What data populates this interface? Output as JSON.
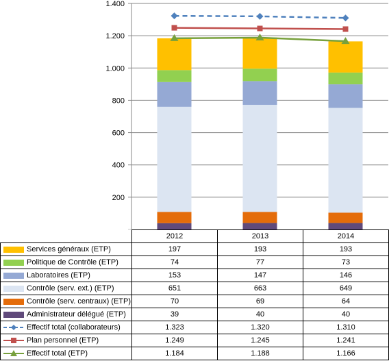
{
  "chart_data": {
    "type": "bar",
    "categories": [
      "2012",
      "2013",
      "2014"
    ],
    "ylim": [
      0,
      1400
    ],
    "yticks": [
      "-",
      "200",
      "400",
      "600",
      "800",
      "1.000",
      "1.200",
      "1.400"
    ],
    "ytick_values": [
      0,
      200,
      400,
      600,
      800,
      1000,
      1200,
      1400
    ],
    "series": [
      {
        "name": "Services généraux (ETP)",
        "type": "stacked-bar",
        "color": "#FFC000",
        "values": [
          197,
          193,
          193
        ],
        "labels": [
          "197",
          "193",
          "193"
        ]
      },
      {
        "name": "Politique de Contrôle  (ETP)",
        "type": "stacked-bar",
        "color": "#92D050",
        "values": [
          74,
          77,
          73
        ],
        "labels": [
          "74",
          "77",
          "73"
        ]
      },
      {
        "name": "Laboratoires (ETP)",
        "type": "stacked-bar",
        "color": "#95A9D4",
        "values": [
          153,
          147,
          146
        ],
        "labels": [
          "153",
          "147",
          "146"
        ]
      },
      {
        "name": "Contrôle (serv. ext.) (ETP)",
        "type": "stacked-bar",
        "color": "#DCE5F2",
        "values": [
          651,
          663,
          649
        ],
        "labels": [
          "651",
          "663",
          "649"
        ]
      },
      {
        "name": "Contrôle (serv. centraux) (ETP)",
        "type": "stacked-bar",
        "color": "#E46C0A",
        "values": [
          70,
          69,
          64
        ],
        "labels": [
          "70",
          "69",
          "64"
        ]
      },
      {
        "name": "Administrateur délégué (ETP)",
        "type": "stacked-bar",
        "color": "#604A7B",
        "values": [
          39,
          40,
          40
        ],
        "labels": [
          "39",
          "40",
          "40"
        ]
      },
      {
        "name": "Effectif total (collaborateurs)",
        "type": "line",
        "dash": "dashed",
        "marker": "diamond",
        "color": "#4F81BD",
        "values": [
          1323,
          1320,
          1310
        ],
        "labels": [
          "1.323",
          "1.320",
          "1.310"
        ]
      },
      {
        "name": "Plan personnel (ETP)",
        "type": "line",
        "dash": "solid",
        "marker": "square",
        "color": "#C0504D",
        "values": [
          1249,
          1245,
          1241
        ],
        "labels": [
          "1.249",
          "1.245",
          "1.241"
        ]
      },
      {
        "name": "Effectif total (ETP)",
        "type": "line",
        "dash": "solid",
        "marker": "triangle",
        "color": "#77A03C",
        "values": [
          1184,
          1188,
          1166
        ],
        "labels": [
          "1.184",
          "1.188",
          "1.166"
        ]
      }
    ]
  }
}
